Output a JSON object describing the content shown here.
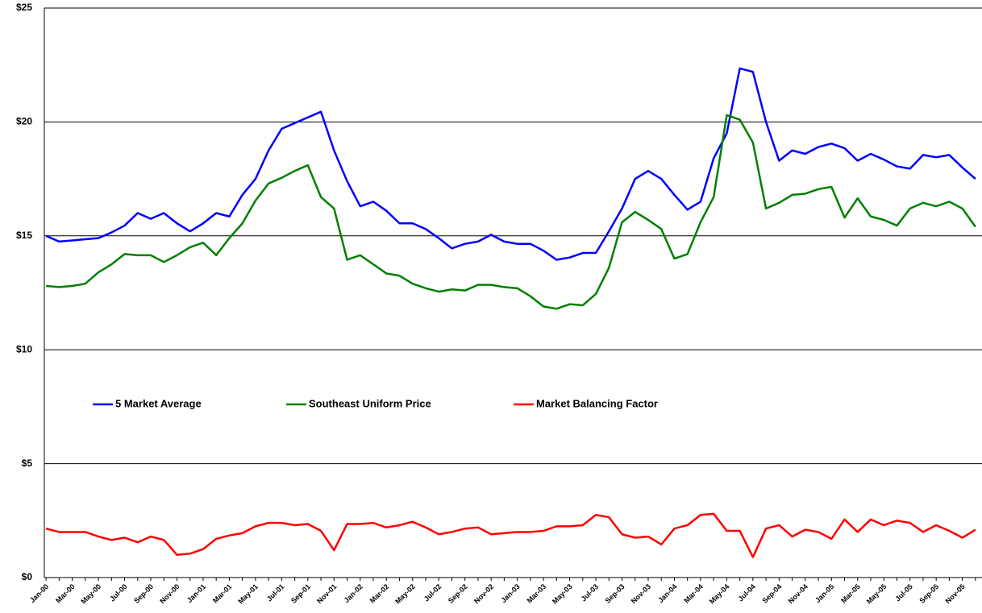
{
  "chart_data": {
    "type": "line",
    "categories": [
      "Jan-00",
      null,
      "Mar-00",
      null,
      "May-00",
      null,
      "Jul-00",
      null,
      "Sep-00",
      null,
      "Nov-00",
      null,
      "Jan-01",
      null,
      "Mar-01",
      null,
      "May-01",
      null,
      "Jul-01",
      null,
      "Sep-01",
      null,
      "Nov-01",
      null,
      "Jan-02",
      null,
      "Mar-02",
      null,
      "May-02",
      null,
      "Jul-02",
      null,
      "Sep-02",
      null,
      "Nov-02",
      null,
      "Jan-03",
      null,
      "Mar-03",
      null,
      "May-03",
      null,
      "Jul-03",
      null,
      "Sep-03",
      null,
      "Nov-03",
      null,
      "Jan-04",
      null,
      "Mar-04",
      null,
      "May-04",
      null,
      "Jul-04",
      null,
      "Sep-04",
      null,
      "Nov-04",
      null,
      "Jan-05",
      null,
      "Mar-05",
      null,
      "May-05",
      null,
      "Jul-05",
      null,
      "Sep-05",
      null,
      "Nov-05",
      null
    ],
    "series": [
      {
        "name": "5 Market Average",
        "color": "#0000ff",
        "values": [
          15.0,
          14.75,
          14.8,
          14.85,
          14.9,
          15.15,
          15.45,
          16.0,
          15.75,
          16.0,
          15.55,
          15.2,
          15.55,
          16.0,
          15.85,
          16.8,
          17.5,
          18.75,
          19.7,
          19.95,
          20.2,
          20.45,
          18.75,
          17.4,
          16.3,
          16.5,
          16.1,
          15.55,
          15.55,
          15.3,
          14.9,
          14.45,
          14.65,
          14.75,
          15.05,
          14.75,
          14.65,
          14.65,
          14.35,
          13.95,
          14.05,
          14.25,
          14.25,
          15.2,
          16.2,
          17.5,
          17.85,
          17.5,
          16.8,
          16.15,
          16.5,
          18.4,
          19.5,
          22.35,
          22.2,
          20.0,
          18.3,
          18.75,
          18.6,
          18.9,
          19.05,
          18.85,
          18.3,
          18.6,
          18.35,
          18.05,
          17.95,
          18.55,
          18.45,
          18.55,
          18.0,
          17.5
        ]
      },
      {
        "name": "Southeast Uniform Price",
        "color": "#008000",
        "values": [
          12.8,
          12.75,
          12.8,
          12.9,
          13.4,
          13.75,
          14.2,
          14.15,
          14.15,
          13.85,
          14.15,
          14.5,
          14.7,
          14.15,
          14.9,
          15.55,
          16.55,
          17.3,
          17.55,
          17.85,
          18.1,
          16.7,
          16.2,
          13.95,
          14.15,
          13.75,
          13.35,
          13.25,
          12.9,
          12.7,
          12.55,
          12.65,
          12.6,
          12.85,
          12.85,
          12.75,
          12.7,
          12.35,
          11.9,
          11.8,
          12.0,
          11.95,
          12.45,
          13.6,
          15.6,
          16.05,
          15.7,
          15.3,
          14.0,
          14.2,
          15.6,
          16.7,
          20.3,
          20.1,
          19.1,
          16.2,
          16.45,
          16.8,
          16.85,
          17.05,
          17.15,
          15.8,
          16.65,
          15.85,
          15.7,
          15.45,
          16.2,
          16.45,
          16.3,
          16.5,
          16.2,
          15.4
        ]
      },
      {
        "name": "Market Balancing Factor",
        "color": "#ff0000",
        "values": [
          2.15,
          2.0,
          2.0,
          2.0,
          1.8,
          1.65,
          1.75,
          1.55,
          1.8,
          1.65,
          1.0,
          1.05,
          1.25,
          1.7,
          1.85,
          1.95,
          2.25,
          2.4,
          2.4,
          2.3,
          2.35,
          2.05,
          1.2,
          2.35,
          2.35,
          2.4,
          2.2,
          2.3,
          2.45,
          2.2,
          1.9,
          2.0,
          2.15,
          2.2,
          1.9,
          1.95,
          2.0,
          2.0,
          2.05,
          2.25,
          2.25,
          2.3,
          2.75,
          2.65,
          1.9,
          1.75,
          1.8,
          1.45,
          2.15,
          2.3,
          2.75,
          2.8,
          2.05,
          2.05,
          0.9,
          2.15,
          2.3,
          1.8,
          2.1,
          2.0,
          1.7,
          2.55,
          2.0,
          2.55,
          2.3,
          2.5,
          2.4,
          2.0,
          2.3,
          2.05,
          1.75,
          2.1
        ]
      }
    ],
    "ylim": [
      0,
      25
    ],
    "yticks": [
      {
        "value": 0,
        "label": "$0"
      },
      {
        "value": 5,
        "label": "$5"
      },
      {
        "value": 10,
        "label": "$10"
      },
      {
        "value": 15,
        "label": "$15"
      },
      {
        "value": 20,
        "label": "$20"
      },
      {
        "value": 25,
        "label": "$25"
      }
    ],
    "grid": true,
    "legend": "middle"
  }
}
